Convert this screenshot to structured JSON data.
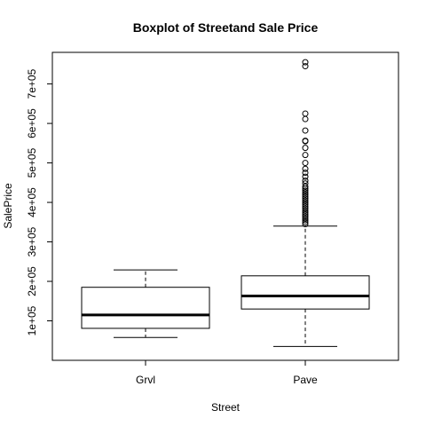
{
  "chart_data": {
    "type": "boxplot",
    "title": "Boxplot of Streetand Sale Price",
    "xlabel": "Street",
    "ylabel": "SalePrice",
    "categories": [
      "Grvl",
      "Pave"
    ],
    "y_ticks": [
      100000,
      200000,
      300000,
      400000,
      500000,
      600000,
      700000
    ],
    "y_tick_labels": [
      "1e+05",
      "2e+05",
      "3e+05",
      "4e+05",
      "5e+05",
      "6e+05",
      "7e+05"
    ],
    "ylim": [
      0,
      780000
    ],
    "grid": false,
    "legend": false,
    "boxes": [
      {
        "category": "Grvl",
        "whisker_low": 58000,
        "q1": 81000,
        "median": 115000,
        "q3": 185000,
        "whisker_high": 229000,
        "outliers": []
      },
      {
        "category": "Pave",
        "whisker_low": 35000,
        "q1": 130000,
        "median": 163000,
        "q3": 214000,
        "whisker_high": 340000,
        "outliers": [
          345000,
          350000,
          355000,
          360000,
          365000,
          370000,
          375000,
          380000,
          385000,
          390000,
          395000,
          400000,
          405000,
          410000,
          415000,
          420000,
          425000,
          430000,
          435000,
          440000,
          448000,
          455000,
          465000,
          475000,
          485000,
          500000,
          520000,
          538000,
          555000,
          556000,
          582000,
          611000,
          625000,
          745000,
          755000
        ]
      }
    ]
  }
}
